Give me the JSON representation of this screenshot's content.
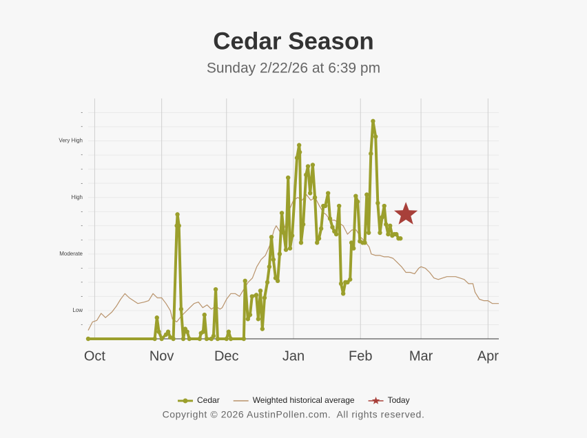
{
  "chart_data": {
    "type": "line",
    "title": "Cedar Season",
    "subtitle": "Sunday 2/22/26 at 6:39 pm",
    "copyright": "Copyright © 2026 AustinPollen.com.  All rights reserved.",
    "xlim": [
      -3,
      187
    ],
    "xticks": [
      {
        "value": 0,
        "label": "Oct"
      },
      {
        "value": 31,
        "label": "Nov"
      },
      {
        "value": 61,
        "label": "Dec"
      },
      {
        "value": 92,
        "label": "Jan"
      },
      {
        "value": 123,
        "label": "Feb"
      },
      {
        "value": 151,
        "label": "Mar"
      },
      {
        "value": 182,
        "label": "Apr"
      }
    ],
    "ylim": [
      0,
      17
    ],
    "yticks": [
      {
        "value": 1,
        "label": "-"
      },
      {
        "value": 2,
        "label": "Low"
      },
      {
        "value": 3,
        "label": "-"
      },
      {
        "value": 4,
        "label": "-"
      },
      {
        "value": 5,
        "label": "-"
      },
      {
        "value": 6,
        "label": "Moderate"
      },
      {
        "value": 7,
        "label": "-"
      },
      {
        "value": 8,
        "label": "-"
      },
      {
        "value": 9,
        "label": "-"
      },
      {
        "value": 10,
        "label": "High"
      },
      {
        "value": 11,
        "label": "-"
      },
      {
        "value": 12,
        "label": "-"
      },
      {
        "value": 13,
        "label": "-"
      },
      {
        "value": 14,
        "label": "Very High"
      },
      {
        "value": 15,
        "label": "-"
      },
      {
        "value": 16,
        "label": "-"
      }
    ],
    "grid": true,
    "legend": "bottom",
    "series": [
      {
        "name": "Cedar",
        "color": "#9b9f2c",
        "marker": "circle",
        "x": [
          -3,
          27.8,
          28.8,
          29.7,
          31,
          33,
          34,
          35,
          36.4,
          38,
          38.3,
          39,
          40,
          41,
          41.9,
          42.8,
          43.8,
          48.6,
          49.2,
          50.2,
          50.8,
          51.8,
          54,
          55,
          56,
          56.9,
          61,
          62,
          63,
          69,
          69.6,
          70.9,
          71.9,
          72.8,
          74.8,
          75.7,
          76.7,
          77.6,
          78.6,
          79.9,
          80.8,
          81.8,
          82.7,
          83.7,
          84.7,
          85.6,
          86.6,
          87.5,
          88.5,
          89.5,
          90.4,
          91.4,
          93.6,
          94.6,
          94.9,
          95.5,
          96.5,
          97.8,
          98.7,
          99.7,
          100.9,
          101.9,
          102.9,
          103.8,
          104.8,
          105.8,
          106.7,
          108,
          108.9,
          110,
          110.9,
          111.8,
          113.1,
          114,
          115,
          116,
          117,
          118.2,
          118.8,
          119.8,
          120.8,
          121.7,
          122.7,
          124,
          125,
          125.9,
          126.8,
          127.8,
          128.8,
          130,
          131,
          132,
          133,
          134,
          134.8,
          135.8,
          136.7,
          137.7,
          138.7,
          139.6,
          140.6,
          141.5
        ],
        "values": [
          0,
          0,
          1.5,
          0.5,
          0,
          0.3,
          0.5,
          0.1,
          0,
          8,
          8.8,
          8,
          2.1,
          0,
          0.7,
          0.5,
          0,
          0,
          0.4,
          0.5,
          1.7,
          0,
          0,
          0.2,
          3.5,
          0,
          0,
          0.5,
          0,
          0,
          4.1,
          1.4,
          1.7,
          3,
          3.1,
          1.4,
          3.4,
          0.7,
          2.9,
          4,
          5.1,
          7.2,
          5.6,
          4.3,
          4.1,
          6,
          8.9,
          7.5,
          6.3,
          11.4,
          6.4,
          7.3,
          12.8,
          13.7,
          13.2,
          6.8,
          8.1,
          11.6,
          12.2,
          10.3,
          12.3,
          10,
          6.8,
          7.1,
          7.8,
          9.4,
          9.4,
          10.3,
          8.5,
          7.9,
          7.6,
          7.4,
          9.4,
          3.9,
          3.2,
          4,
          4,
          4.2,
          6.8,
          6.4,
          10.1,
          9.7,
          6.9,
          6.8,
          6.8,
          10.2,
          7.5,
          13.1,
          15.4,
          14.3,
          9.6,
          7.5,
          8.6,
          9.4,
          8.1,
          7.4,
          8,
          7.3,
          7.4,
          7.4,
          7.1,
          7.1
        ]
      },
      {
        "name": "Weighted historical average",
        "color": "#b8926a",
        "marker": "none",
        "x": [
          -3,
          -1,
          1,
          3,
          5,
          8,
          10,
          12,
          14,
          16,
          18,
          20,
          23,
          25,
          27,
          29,
          31,
          33,
          35,
          36,
          38,
          40,
          42,
          44,
          46,
          48,
          50,
          52,
          54,
          56,
          58,
          59,
          61,
          63,
          65,
          67,
          69,
          71,
          73,
          75,
          77,
          79,
          81,
          83,
          84,
          86,
          88,
          90,
          92,
          94,
          96,
          98,
          100,
          102,
          104,
          106,
          107,
          109,
          111,
          113,
          115,
          117,
          119,
          121,
          123,
          125,
          127,
          128,
          130,
          132,
          134,
          136,
          138,
          140,
          142,
          144,
          146,
          148,
          150,
          151,
          153,
          155,
          157,
          159,
          161,
          163,
          165,
          167,
          169,
          171,
          173,
          175,
          176,
          178,
          180,
          182,
          184,
          186,
          187
        ],
        "values": [
          0.6,
          1.2,
          1.3,
          1.8,
          1.5,
          1.9,
          2.3,
          2.8,
          3.2,
          2.9,
          2.7,
          2.5,
          2.6,
          2.7,
          3.2,
          2.9,
          2.9,
          2.5,
          2,
          1.4,
          1.2,
          1.6,
          1.9,
          2.2,
          2.5,
          2.6,
          2.2,
          2.4,
          2.1,
          2.3,
          2.1,
          2.2,
          2.8,
          3.2,
          3.2,
          3,
          3.5,
          4,
          4.3,
          5.1,
          5.6,
          5.9,
          6.6,
          7.7,
          8,
          7.5,
          7.9,
          9.1,
          9.8,
          10,
          9.8,
          10.2,
          9.8,
          10,
          9.4,
          8.9,
          8.8,
          8.4,
          8.4,
          8.2,
          8,
          7.4,
          7.7,
          7.7,
          7.2,
          6.9,
          6.5,
          6,
          5.9,
          5.9,
          5.8,
          5.8,
          5.7,
          5.4,
          5.1,
          4.7,
          4.7,
          4.6,
          5,
          5.1,
          5,
          4.7,
          4.3,
          4.2,
          4.3,
          4.4,
          4.4,
          4.4,
          4.3,
          4.2,
          3.9,
          3.9,
          3.3,
          2.8,
          2.7,
          2.7,
          2.5,
          2.5,
          2.5
        ]
      },
      {
        "name": "Today",
        "color": "#a8403a",
        "marker": "star",
        "x": [
          144
        ],
        "values": [
          8.8
        ]
      }
    ]
  }
}
